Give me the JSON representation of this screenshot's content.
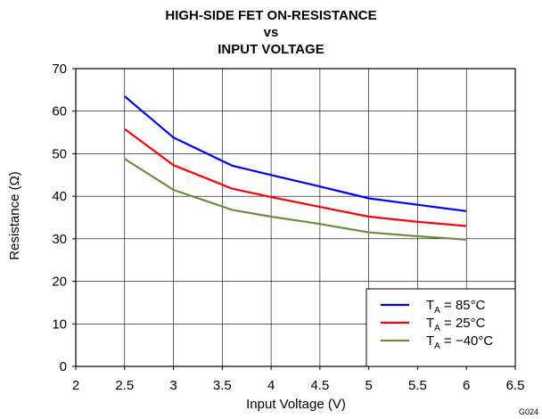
{
  "chart_data": {
    "type": "line",
    "title_lines": [
      "HIGH-SIDE FET ON-RESISTANCE",
      "vs",
      "INPUT VOLTAGE"
    ],
    "xlabel": "Input Voltage (V)",
    "ylabel": "Resistance (Ω)",
    "xlim": [
      2,
      6.5
    ],
    "ylim": [
      0,
      70
    ],
    "x_ticks": [
      "2",
      "2.5",
      "3",
      "3.5",
      "4",
      "4.5",
      "5",
      "5.5",
      "6",
      "6.5"
    ],
    "y_ticks": [
      "0",
      "10",
      "20",
      "30",
      "40",
      "50",
      "60",
      "70"
    ],
    "grid": true,
    "legend_placement": "bottom-right",
    "series": [
      {
        "name_main": "T",
        "name_sub": "A",
        "name_rest": " = 85°C",
        "color": "#0000ff",
        "points": [
          [
            2.5,
            63.5
          ],
          [
            3.0,
            53.8
          ],
          [
            3.6,
            47.2
          ],
          [
            4.0,
            45.0
          ],
          [
            4.5,
            42.3
          ],
          [
            5.0,
            39.5
          ],
          [
            5.5,
            38.0
          ],
          [
            6.0,
            36.5
          ]
        ]
      },
      {
        "name_main": "T",
        "name_sub": "A",
        "name_rest": " = 25°C",
        "color": "#ff0000",
        "points": [
          [
            2.5,
            55.8
          ],
          [
            3.0,
            47.3
          ],
          [
            3.6,
            41.8
          ],
          [
            4.0,
            39.8
          ],
          [
            4.5,
            37.5
          ],
          [
            5.0,
            35.2
          ],
          [
            5.5,
            34.0
          ],
          [
            6.0,
            33.0
          ]
        ]
      },
      {
        "name_main": "T",
        "name_sub": "A",
        "name_rest": " = −40°C",
        "color": "#6b8e3a",
        "points": [
          [
            2.5,
            48.8
          ],
          [
            3.0,
            41.5
          ],
          [
            3.6,
            36.8
          ],
          [
            4.0,
            35.2
          ],
          [
            4.5,
            33.5
          ],
          [
            5.0,
            31.5
          ],
          [
            5.5,
            30.6
          ],
          [
            6.0,
            29.8
          ]
        ]
      }
    ],
    "figure_code": "G024"
  }
}
